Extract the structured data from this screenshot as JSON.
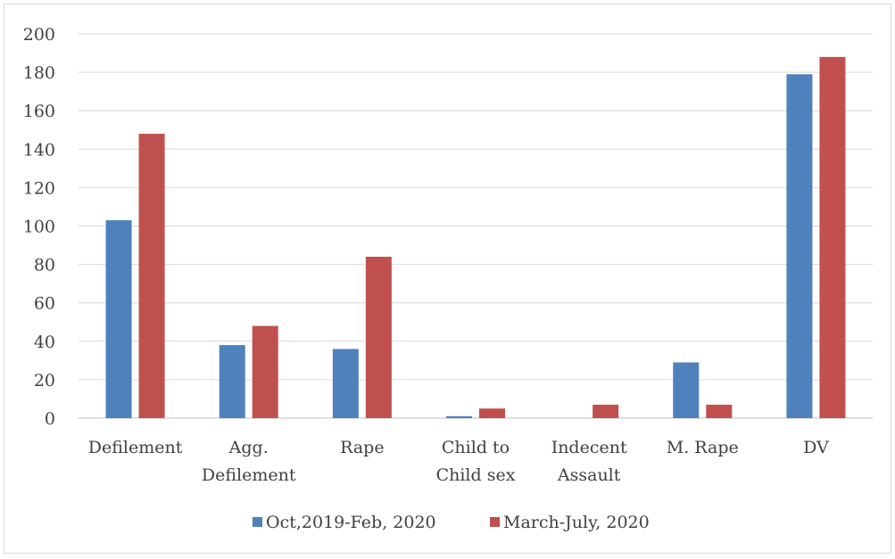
{
  "chart_data": {
    "type": "bar",
    "categories": [
      [
        "Defilement"
      ],
      [
        "Agg.",
        "Defilement"
      ],
      [
        "Rape"
      ],
      [
        "Child to",
        "Child sex"
      ],
      [
        "Indecent",
        "Assault"
      ],
      [
        "M. Rape"
      ],
      [
        "DV"
      ]
    ],
    "series": [
      {
        "name": "Oct,2019-Feb, 2020",
        "color": "#4f81bd",
        "values": [
          103,
          38,
          36,
          1,
          0,
          29,
          179
        ]
      },
      {
        "name": "March-July, 2020",
        "color": "#c0504d",
        "values": [
          148,
          48,
          84,
          5,
          7,
          7,
          188
        ]
      }
    ],
    "ylim": [
      0,
      200
    ],
    "yticks": [
      0,
      20,
      40,
      60,
      80,
      100,
      120,
      140,
      160,
      180,
      200
    ],
    "grid": true,
    "legend_position": "bottom",
    "title": "",
    "xlabel": "",
    "ylabel": ""
  }
}
